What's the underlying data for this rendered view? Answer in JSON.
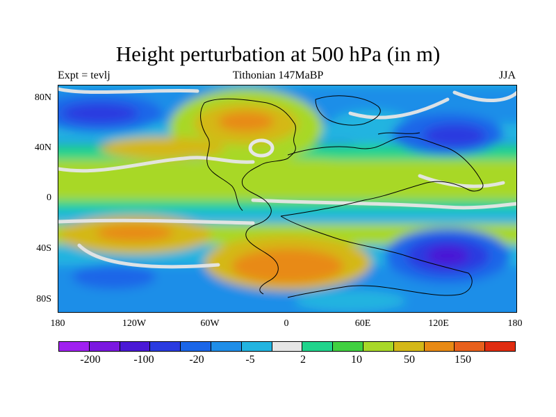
{
  "title": "Height perturbation at 500 hPa (in m)",
  "subtitle_left": "Expt = tevlj",
  "subtitle_center": "Tithonian 147MaBP",
  "subtitle_right": "JJA",
  "lat_labels": [
    "80N",
    "40N",
    "0",
    "40S",
    "80S"
  ],
  "lon_labels": [
    "180",
    "120W",
    "60W",
    "0",
    "60E",
    "120E",
    "180"
  ],
  "colorbar": {
    "colors": [
      "#a020f0",
      "#7b18e0",
      "#4a19d6",
      "#2a3be0",
      "#1a66e8",
      "#1f8ee8",
      "#22b4e0",
      "#e6e6e6",
      "#20d48c",
      "#40d040",
      "#a8d828",
      "#d4b818",
      "#e88a14",
      "#e8601c",
      "#e02c10"
    ],
    "labels": [
      "-200",
      "-100",
      "-20",
      "-5",
      "2",
      "10",
      "50",
      "150"
    ]
  },
  "palette": {
    "violet": "#4a19d6",
    "deep_blue": "#2a3be0",
    "blue": "#1a66e8",
    "mid_blue": "#1f8ee8",
    "cyan": "#22b4e0",
    "neutral": "#e6e6e6",
    "teal": "#20d48c",
    "green": "#40d040",
    "lime": "#a8d828",
    "yellow": "#d4b818",
    "orange": "#e88a14"
  }
}
